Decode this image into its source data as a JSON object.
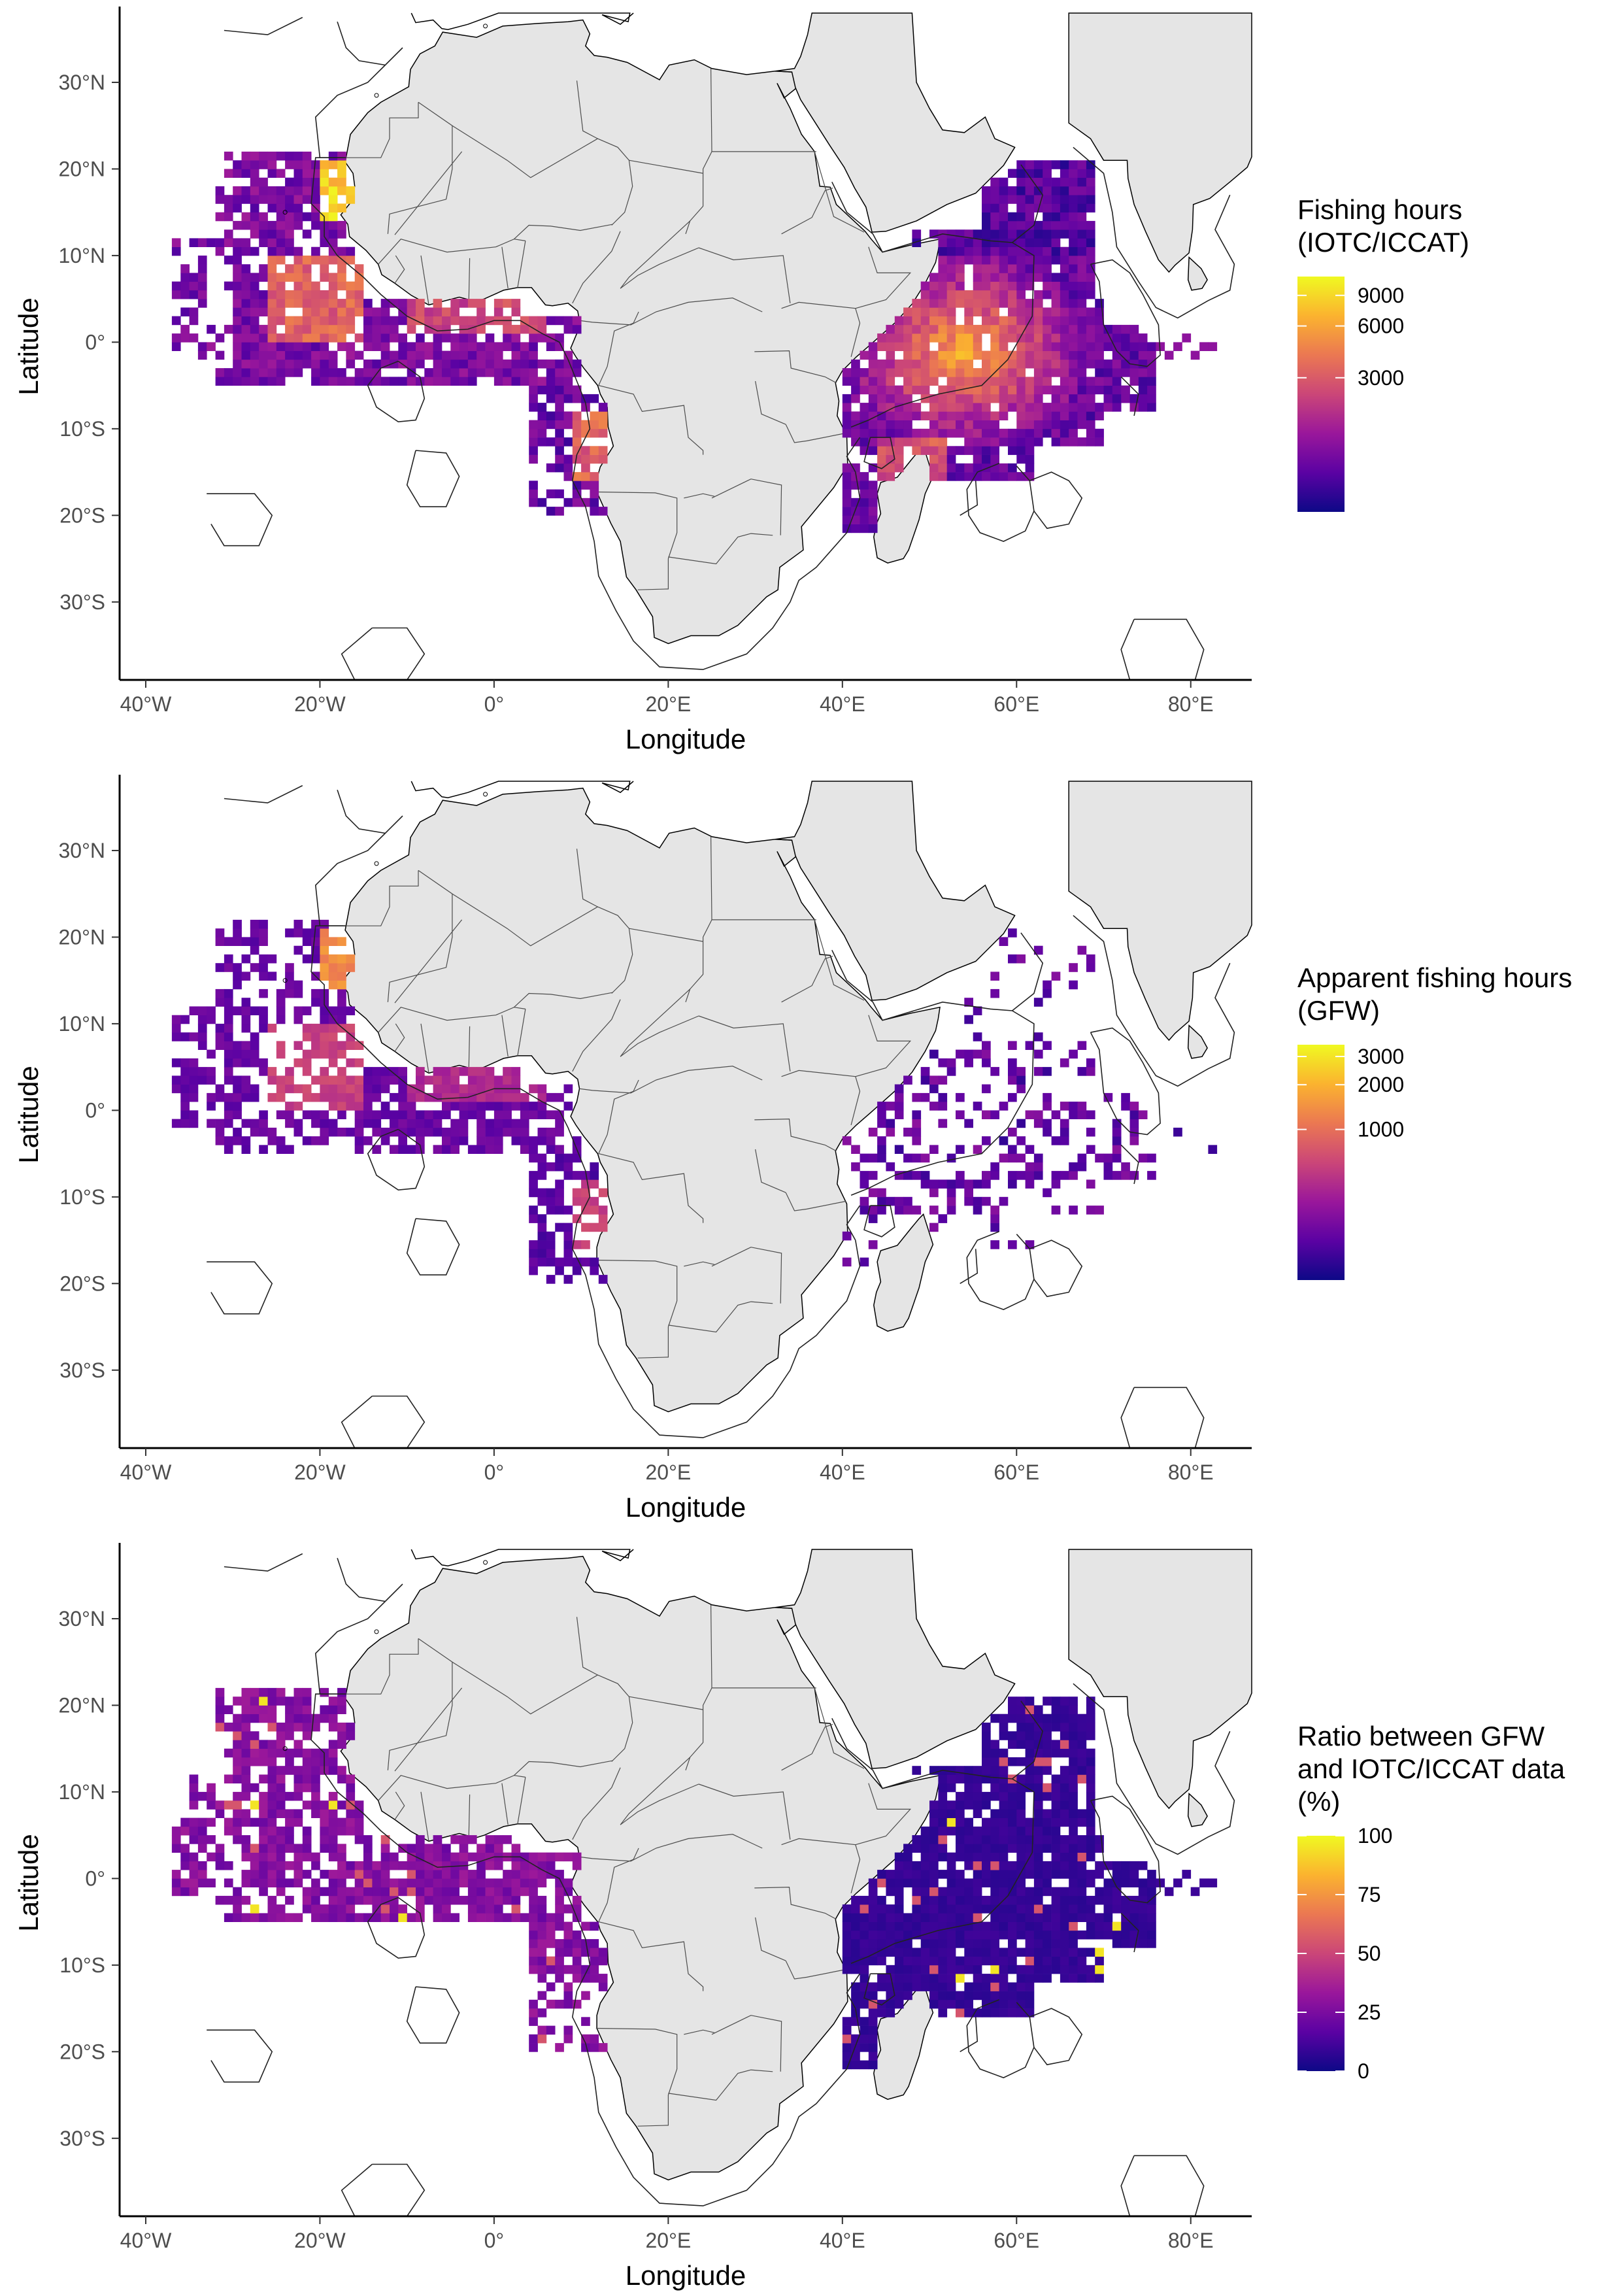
{
  "colors": {
    "land": "#e5e5e5",
    "border": "#4d4d4d",
    "eez": "#222222",
    "background": "#ffffff",
    "palette": [
      "#0d0887",
      "#5b02a3",
      "#9a179b",
      "#cb4678",
      "#eb7852",
      "#fbb32f",
      "#f0f921"
    ]
  },
  "axes": {
    "x_ticks": [
      "40°W",
      "20°W",
      "0°",
      "20°E",
      "40°E",
      "60°E",
      "80°E"
    ],
    "x_values": [
      -40,
      -20,
      0,
      20,
      40,
      60,
      80
    ],
    "y_ticks": [
      "30°N",
      "20°N",
      "10°N",
      "0°",
      "10°S",
      "20°S",
      "30°S"
    ],
    "y_values": [
      30,
      20,
      10,
      0,
      -10,
      -20,
      -30
    ],
    "xlim": [
      -43,
      87
    ],
    "ylim": [
      -39,
      38
    ],
    "xlabel": "Longitude",
    "ylabel": "Latitude"
  },
  "panels": [
    {
      "legend_title": [
        "Fishing hours",
        "(IOTC/ICCAT)"
      ],
      "legend_ticks": [
        "9000",
        "6000",
        "3000"
      ],
      "legend_tick_fractions": [
        0.92,
        0.79,
        0.57
      ]
    },
    {
      "legend_title": [
        "Apparent fishing hours",
        "(GFW)"
      ],
      "legend_ticks": [
        "3000",
        "2000",
        "1000"
      ],
      "legend_tick_fractions": [
        0.95,
        0.83,
        0.64
      ]
    },
    {
      "legend_title": [
        "Ratio between GFW",
        "and IOTC/ICCAT data",
        "(%)"
      ],
      "legend_ticks": [
        "100",
        "75",
        "50",
        "25",
        "0"
      ],
      "legend_tick_fractions": [
        1.0,
        0.75,
        0.5,
        0.25,
        0.0
      ]
    }
  ]
}
